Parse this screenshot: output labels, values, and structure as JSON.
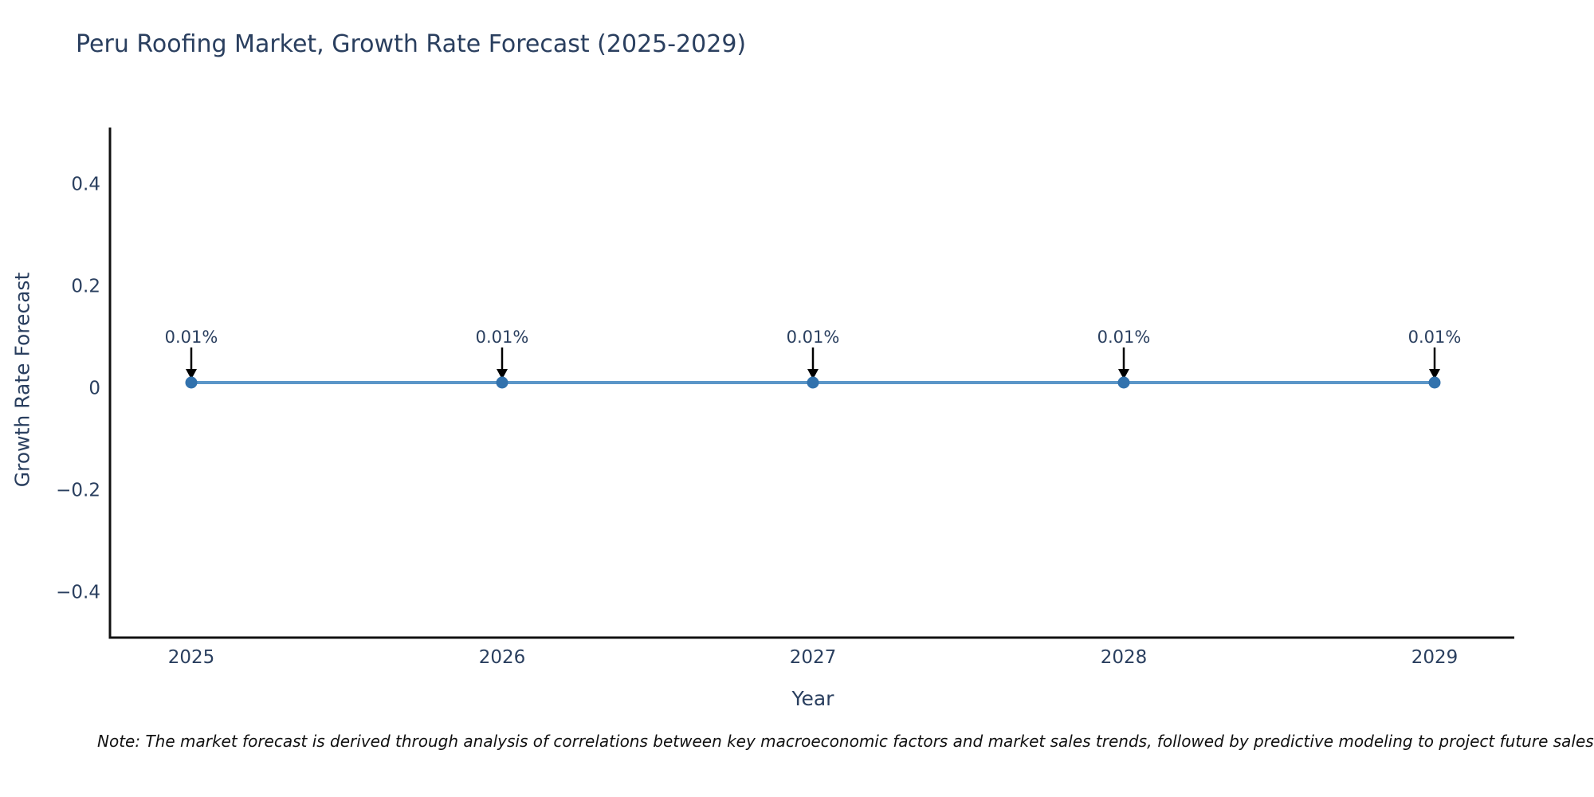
{
  "title": "Peru Roofing Market, Growth Rate Forecast (2025-2029)",
  "note": "Note: The market forecast is derived through analysis of correlations between key macroeconomic factors and market sales trends, followed by predictive modeling to project future sales.",
  "colors": {
    "text": "#2a3f5f",
    "axis": "#111111",
    "line": "#5b96c8",
    "marker": "#3272ad",
    "arrow": "#000000",
    "note_text": "#111111",
    "background": "#ffffff"
  },
  "chart_data": {
    "type": "line",
    "title": "Peru Roofing Market, Growth Rate Forecast (2025-2029)",
    "xlabel": "Year",
    "ylabel": "Growth Rate Forecast",
    "categories": [
      "2025",
      "2026",
      "2027",
      "2028",
      "2029"
    ],
    "series": [
      {
        "name": "Growth Rate Forecast",
        "values": [
          0.01,
          0.01,
          0.01,
          0.01,
          0.01
        ]
      }
    ],
    "point_labels": [
      "0.01%",
      "0.01%",
      "0.01%",
      "0.01%",
      "0.01%"
    ],
    "yticks": [
      0.4,
      0.2,
      0,
      -0.2,
      -0.4
    ],
    "ytick_labels": [
      "0.4",
      "0.2",
      "0",
      "−0.2",
      "−0.4"
    ],
    "ylim": [
      -0.49,
      0.51
    ],
    "grid": false,
    "legend": "none",
    "annotation_style": "down-arrow"
  }
}
